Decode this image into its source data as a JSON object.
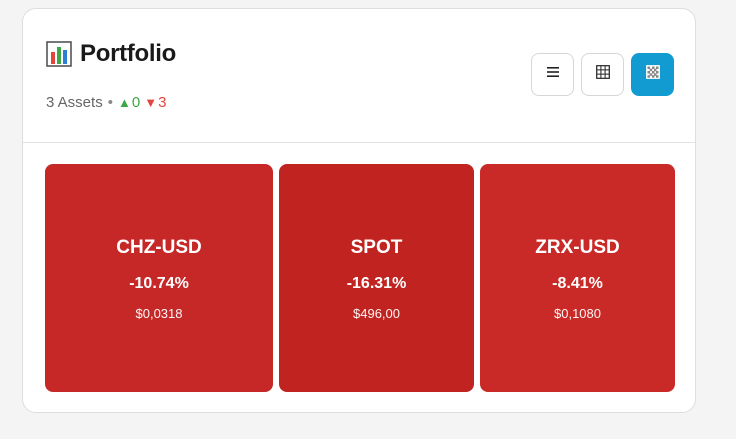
{
  "header": {
    "title": "Portfolio",
    "title_icon": "bar-chart-icon",
    "summary": {
      "assets_label": "3 Assets",
      "separator": "•",
      "up_symbol": "▲",
      "up_count": "0",
      "down_symbol": "▼",
      "down_count": "3"
    },
    "view_buttons": [
      {
        "icon": "list-icon",
        "active": false
      },
      {
        "icon": "table-grid-icon",
        "active": false
      },
      {
        "icon": "heatmap-icon",
        "active": true
      }
    ]
  },
  "colors": {
    "accent": "#129bd0",
    "up": "#3aa845",
    "down": "#e2453e",
    "tile_loss": "#c62828"
  },
  "tiles": [
    {
      "symbol": "CHZ-USD",
      "change": "-10.74%",
      "price": "$0,0318",
      "color": "#c62828"
    },
    {
      "symbol": "SPOT",
      "change": "-16.31%",
      "price": "$496,00",
      "color": "#c12420"
    },
    {
      "symbol": "ZRX-USD",
      "change": "-8.41%",
      "price": "$0,1080",
      "color": "#c92a27"
    }
  ]
}
